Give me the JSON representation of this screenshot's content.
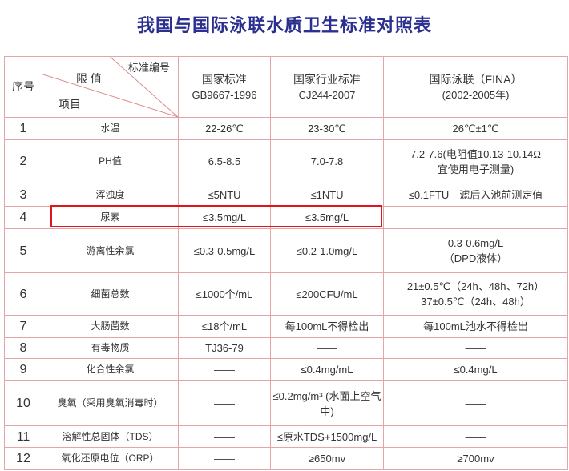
{
  "title": "我国与国际泳联水质卫生标准对照表",
  "header": {
    "no": "序号",
    "corner_standard": "标准编号",
    "corner_limit": "限 值",
    "corner_item": "项目",
    "col1": [
      "国家标准",
      "GB9667-1996"
    ],
    "col2": [
      "国家行业标准",
      "CJ244-2007"
    ],
    "col3": [
      "国际泳联（FINA）",
      "(2002-2005年)"
    ]
  },
  "highlight_color": "#e0141c",
  "rows": [
    {
      "no": "1",
      "item": "水温",
      "gb": "22-26℃",
      "cj": "23-30℃",
      "fina": [
        "26℃±1℃"
      ]
    },
    {
      "no": "2",
      "item": "PH值",
      "gb": "6.5-8.5",
      "cj": "7.0-7.8",
      "fina": [
        "7.2-7.6(电阻值10.13-10.14Ω",
        "宜使用电子测量)"
      ]
    },
    {
      "no": "3",
      "item": "浑浊度",
      "gb": "≤5NTU",
      "cj": "≤1NTU",
      "fina": [
        "≤0.1FTU　滤后入池前测定值"
      ]
    },
    {
      "no": "4",
      "item": "尿素",
      "gb": "≤3.5mg/L",
      "cj": "≤3.5mg/L",
      "fina": [
        ""
      ]
    },
    {
      "no": "5",
      "item": "游离性余氯",
      "gb": "≤0.3-0.5mg/L",
      "cj": "≤0.2-1.0mg/L",
      "fina": [
        "0.3-0.6mg/L",
        "（DPD液体）"
      ]
    },
    {
      "no": "6",
      "item": "细菌总数",
      "gb": "≤1000个/mL",
      "cj": "≤200CFU/mL",
      "fina": [
        "21±0.5℃（24h、48h、72h）",
        "37±0.5℃（24h、48h）"
      ]
    },
    {
      "no": "7",
      "item": "大肠菌数",
      "gb": "≤18个/mL",
      "cj": "每100mL不得检出",
      "fina": [
        "每100mL池水不得检出"
      ]
    },
    {
      "no": "8",
      "item": "有毒物质",
      "gb": "TJ36-79",
      "cj": "——",
      "fina": [
        "——"
      ]
    },
    {
      "no": "9",
      "item": "化合性余氯",
      "gb": "——",
      "cj": "≤0.4mg/mL",
      "fina": [
        "≤0.4mg/L"
      ]
    },
    {
      "no": "10",
      "item": "臭氧（采用臭氧消毒时）",
      "gb": "——",
      "cj": "≤0.2mg/m³ (水面上空气中)",
      "fina": [
        "——"
      ]
    },
    {
      "no": "11",
      "item": "溶解性总固体（TDS）",
      "gb": "——",
      "cj": "≤原水TDS+1500mg/L",
      "fina": [
        "——"
      ]
    },
    {
      "no": "12",
      "item": "氧化还原电位（ORP）",
      "gb": "——",
      "cj": "≥650mv",
      "fina": [
        "≥700mv"
      ]
    }
  ]
}
